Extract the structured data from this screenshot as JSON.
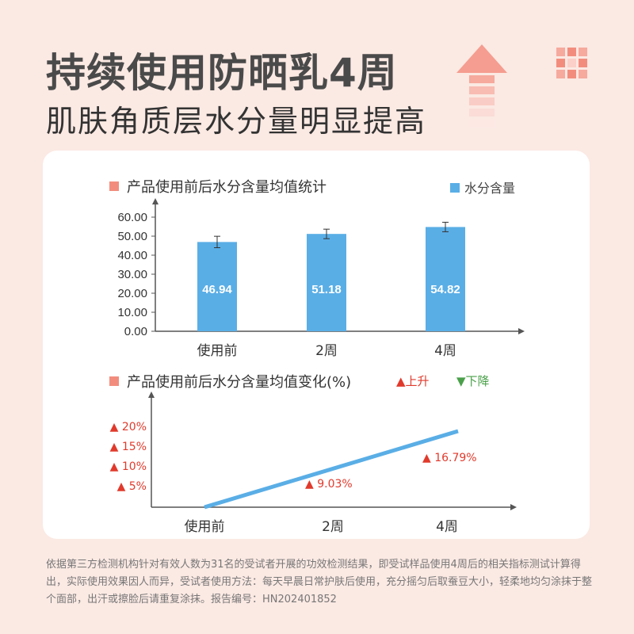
{
  "header": {
    "title": "持续使用防晒乳4周",
    "subtitle": "肌肤角质层水分量明显提高"
  },
  "icons": {
    "arrow": "up-arrow-icon",
    "grid": "grid-icon"
  },
  "colors": {
    "background": "#fbe9e3",
    "bar": "#5aaee6",
    "accent": "#f28d7e",
    "up": "#e03a2c",
    "down": "#4aa04a",
    "line": "#5aaee6"
  },
  "chart_data": [
    {
      "type": "bar",
      "title": "产品使用前后水分含量均值统计",
      "legend": "水分含量",
      "legend_position": "top-right",
      "categories": [
        "使用前",
        "2周",
        "4周"
      ],
      "series": [
        {
          "name": "水分含量",
          "values": [
            46.94,
            51.18,
            54.82
          ]
        }
      ],
      "value_labels": [
        "46.94",
        "51.18",
        "54.82"
      ],
      "error_bars": [
        3.0,
        2.5,
        2.5
      ],
      "yticks": [
        "0.00",
        "10.00",
        "20.00",
        "30.00",
        "40.00",
        "50.00",
        "60.00"
      ],
      "ylim": [
        0,
        60
      ],
      "grid": false
    },
    {
      "type": "line",
      "title": "产品使用前后水分含量均值变化(%)",
      "legend_up": "▲上升",
      "legend_down": "▼下降",
      "categories": [
        "使用前",
        "2周",
        "4周"
      ],
      "yticks": [
        "▲ 5%",
        "▲ 10%",
        "▲ 15%",
        "▲ 20%"
      ],
      "ylim": [
        0,
        22
      ],
      "series": [
        {
          "values": [
            0,
            9.03,
            16.79
          ]
        }
      ],
      "point_labels": [
        "",
        "▲ 9.03%",
        "▲ 16.79%"
      ],
      "grid": false
    }
  ],
  "footnote": "依据第三方检测机构针对有效人数为31名的受试者开展的功效检测结果，即受试样品使用4周后的相关指标测试计算得出，实际使用效果因人而异，受试者使用方法：每天早晨日常护肤后使用，充分摇匀后取蚕豆大小，轻柔地均匀涂抹于整个面部，出汗或擦脸后请重复涂抹。报告编号：HN202401852"
}
